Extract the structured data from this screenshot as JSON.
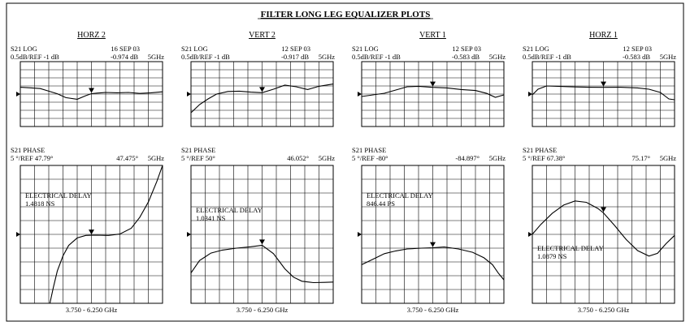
{
  "page_title": "FILTER LONG LEG EQUALIZER PLOTS",
  "columns": [
    {
      "title": "HORZ 2",
      "mag": {
        "header_left_1": "S21 LOG",
        "header_left_2": "0.5dB/REF -1 dB",
        "header_right_1": "16 SEP 03",
        "marker_value": "-0.974 dB",
        "marker_freq": "5GHz"
      },
      "phase": {
        "header_left_1": "S21  PHASE",
        "header_left_2": "5 °/REF 47.79°",
        "marker_value": "47.475°",
        "marker_freq": "5GHz",
        "delay_label": "ELECTRICAL DELAY",
        "delay_value": "1.4818 NS"
      },
      "freq_range": "3.750 - 6.250 GHz"
    },
    {
      "title": "VERT 2",
      "mag": {
        "header_left_1": "S21 LOG",
        "header_left_2": "0.5dB/REF -1 dB",
        "header_right_1": "12 SEP 03",
        "marker_value": "-0.917 dB",
        "marker_freq": "5GHz"
      },
      "phase": {
        "header_left_1": "S21  PHASE",
        "header_left_2": "5 °/REF 50°",
        "marker_value": "46.052°",
        "marker_freq": "5GHz",
        "delay_label": "ELECTRICAL DELAY",
        "delay_value": "1.0341 NS"
      },
      "freq_range": "3.750 - 6.250 GHz"
    },
    {
      "title": "VERT 1",
      "mag": {
        "header_left_1": "S21 LOG",
        "header_left_2": "0.5dB/REF -1 dB",
        "header_right_1": "12 SEP 03",
        "marker_value": "-0.583 dB",
        "marker_freq": "5GHz"
      },
      "phase": {
        "header_left_1": "S21  PHASE",
        "header_left_2": "5 °/REF -80°",
        "marker_value": "-84.897°",
        "marker_freq": "5GHz",
        "delay_label": "ELECTRICAL DELAY",
        "delay_value": "846.44 PS"
      },
      "freq_range": "3.750 - 6.250 GHz"
    },
    {
      "title": "HORZ 1",
      "mag": {
        "header_left_1": "S21 LOG",
        "header_left_2": "0.5dB/REF -1 dB",
        "header_right_1": "12 SEP 03",
        "marker_value": "-0.583 dB",
        "marker_freq": "5GHz"
      },
      "phase": {
        "header_left_1": "S21  PHASE",
        "header_left_2": "5 °/REF 67.38°",
        "marker_value": "75.17°",
        "marker_freq": "5GHz",
        "delay_label": "ELECTRICAL DELAY",
        "delay_value": "1.0879 NS"
      },
      "freq_range": "3.750 - 6.250 GHz"
    }
  ],
  "chart_data": [
    {
      "type": "line",
      "title": "HORZ 2 – S21 LOG",
      "xlabel": "3.750 - 6.250 GHz",
      "ylabel": "0.5dB/REF -1 dB",
      "xlim": [
        3.75,
        6.25
      ],
      "ylim": [
        -3,
        1
      ],
      "grid": true,
      "marker": {
        "x": 5.0,
        "y": -0.974
      },
      "series": [
        {
          "x": [
            3.75,
            3.95,
            4.1,
            4.25,
            4.4,
            4.55,
            4.75,
            4.9,
            5.0,
            5.1,
            5.25,
            5.45,
            5.65,
            5.85,
            6.05,
            6.25
          ],
          "y": [
            -0.58,
            -0.62,
            -0.66,
            -0.82,
            -0.98,
            -1.22,
            -1.32,
            -1.1,
            -0.974,
            -0.94,
            -0.9,
            -0.92,
            -0.9,
            -0.96,
            -0.92,
            -0.86
          ]
        }
      ]
    },
    {
      "type": "line",
      "title": "VERT 2 – S21 LOG",
      "xlabel": "3.750 - 6.250 GHz",
      "ylabel": "0.5dB/REF -1 dB",
      "xlim": [
        3.75,
        6.25
      ],
      "ylim": [
        -3,
        1
      ],
      "grid": true,
      "marker": {
        "x": 5.0,
        "y": -0.917
      },
      "series": [
        {
          "x": [
            3.75,
            3.9,
            4.05,
            4.2,
            4.4,
            4.6,
            4.8,
            5.0,
            5.2,
            5.4,
            5.6,
            5.8,
            6.0,
            6.25
          ],
          "y": [
            -2.15,
            -1.65,
            -1.3,
            -1.0,
            -0.84,
            -0.82,
            -0.88,
            -0.917,
            -0.7,
            -0.45,
            -0.55,
            -0.72,
            -0.52,
            -0.38
          ]
        }
      ]
    },
    {
      "type": "line",
      "title": "VERT 1 – S21 LOG",
      "xlabel": "3.750 - 6.250 GHz",
      "ylabel": "0.5dB/REF -1 dB",
      "xlim": [
        3.75,
        6.25
      ],
      "ylim": [
        -3,
        1
      ],
      "grid": true,
      "marker": {
        "x": 5.0,
        "y": -0.583
      },
      "series": [
        {
          "x": [
            3.75,
            3.95,
            4.15,
            4.35,
            4.55,
            4.75,
            5.0,
            5.25,
            5.5,
            5.75,
            5.95,
            6.1,
            6.25
          ],
          "y": [
            -1.15,
            -1.05,
            -0.95,
            -0.75,
            -0.55,
            -0.52,
            -0.583,
            -0.62,
            -0.72,
            -0.78,
            -0.96,
            -1.2,
            -1.05
          ]
        }
      ]
    },
    {
      "type": "line",
      "title": "HORZ 1 – S21 LOG",
      "xlabel": "3.750 - 6.250 GHz",
      "ylabel": "0.5dB/REF -1 dB",
      "xlim": [
        3.75,
        6.25
      ],
      "ylim": [
        -3,
        1
      ],
      "grid": true,
      "marker": {
        "x": 5.0,
        "y": -0.583
      },
      "series": [
        {
          "x": [
            3.75,
            3.85,
            4.0,
            4.2,
            4.5,
            4.75,
            5.0,
            5.3,
            5.6,
            5.8,
            6.0,
            6.15,
            6.25
          ],
          "y": [
            -1.05,
            -0.7,
            -0.5,
            -0.52,
            -0.56,
            -0.58,
            -0.583,
            -0.58,
            -0.62,
            -0.7,
            -0.9,
            -1.3,
            -1.35
          ]
        }
      ]
    },
    {
      "type": "line",
      "title": "HORZ 2 – S21 PHASE",
      "xlabel": "3.750 - 6.250 GHz",
      "ylabel": "5 °/REF 47.79°",
      "xlim": [
        3.75,
        6.25
      ],
      "ylim": [
        22.79,
        72.79
      ],
      "grid": true,
      "marker": {
        "x": 5.0,
        "y": 47.475
      },
      "series": [
        {
          "x": [
            4.27,
            4.33,
            4.4,
            4.5,
            4.6,
            4.75,
            4.9,
            5.0,
            5.1,
            5.3,
            5.5,
            5.7,
            5.85,
            6.0,
            6.15,
            6.25
          ],
          "y": [
            22.8,
            28.5,
            34.5,
            40.0,
            43.8,
            46.5,
            47.4,
            47.475,
            47.5,
            47.4,
            47.9,
            50.0,
            54.0,
            59.5,
            67.0,
            72.8
          ]
        }
      ]
    },
    {
      "type": "line",
      "title": "VERT 2 – S21 PHASE",
      "xlabel": "3.750 - 6.250 GHz",
      "ylabel": "5 °/REF 50°",
      "xlim": [
        3.75,
        6.25
      ],
      "ylim": [
        25,
        75
      ],
      "grid": true,
      "marker": {
        "x": 5.0,
        "y": 46.052
      },
      "series": [
        {
          "x": [
            3.75,
            3.9,
            4.1,
            4.3,
            4.55,
            4.8,
            5.0,
            5.2,
            5.4,
            5.55,
            5.7,
            5.9,
            6.1,
            6.25
          ],
          "y": [
            36.0,
            40.5,
            43.2,
            44.3,
            45.0,
            45.5,
            46.052,
            43.0,
            37.5,
            34.5,
            33.0,
            32.5,
            32.6,
            32.7
          ]
        }
      ]
    },
    {
      "type": "line",
      "title": "VERT 1 – S21 PHASE",
      "xlabel": "3.750 - 6.250 GHz",
      "ylabel": "5 °/REF -80°",
      "xlim": [
        3.75,
        6.25
      ],
      "ylim": [
        -105,
        -55
      ],
      "grid": true,
      "marker": {
        "x": 5.0,
        "y": -84.897
      },
      "series": [
        {
          "x": [
            3.75,
            3.95,
            4.15,
            4.35,
            4.55,
            4.8,
            5.0,
            5.2,
            5.45,
            5.7,
            5.9,
            6.05,
            6.15,
            6.25
          ],
          "y": [
            -91.0,
            -89.0,
            -87.0,
            -86.0,
            -85.3,
            -85.0,
            -84.897,
            -84.6,
            -85.3,
            -86.5,
            -88.5,
            -91.0,
            -94.0,
            -96.5
          ]
        }
      ]
    },
    {
      "type": "line",
      "title": "HORZ 1 – S21 PHASE",
      "xlabel": "3.750 - 6.250 GHz",
      "ylabel": "5 °/REF 67.38°",
      "xlim": [
        3.75,
        6.25
      ],
      "ylim": [
        42.38,
        92.38
      ],
      "grid": true,
      "marker": {
        "x": 5.0,
        "y": 75.17
      },
      "series": [
        {
          "x": [
            3.75,
            3.9,
            4.1,
            4.3,
            4.5,
            4.7,
            4.9,
            5.0,
            5.2,
            5.4,
            5.6,
            5.8,
            5.95,
            6.1,
            6.25
          ],
          "y": [
            67.4,
            71.0,
            75.0,
            78.0,
            79.5,
            79.0,
            76.8,
            75.17,
            70.5,
            65.5,
            61.5,
            59.5,
            60.5,
            64.0,
            67.0
          ]
        }
      ]
    }
  ]
}
